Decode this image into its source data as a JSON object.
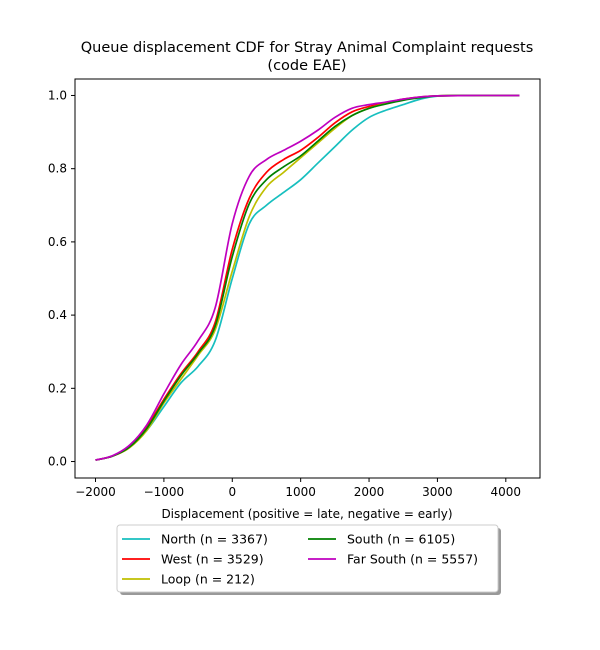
{
  "chart_data": {
    "type": "line",
    "title_line1": "Queue displacement CDF for Stray Animal Complaint  requests",
    "title_line2": "(code EAE)",
    "xlabel": "Displacement (positive = late, negative = early)",
    "ylabel": "",
    "xlim": [
      -2300,
      4500
    ],
    "ylim": [
      -0.045,
      1.045
    ],
    "xticks": [
      -2000,
      -1000,
      0,
      1000,
      2000,
      3000,
      4000
    ],
    "xtick_labels": [
      "−2000",
      "−1000",
      "0",
      "1000",
      "2000",
      "3000",
      "4000"
    ],
    "yticks": [
      0.0,
      0.2,
      0.4,
      0.6,
      0.8,
      1.0
    ],
    "ytick_labels": [
      "0.0",
      "0.2",
      "0.4",
      "0.6",
      "0.8",
      "1.0"
    ],
    "grid": false,
    "legend_position": "bottom-center, below axes",
    "x": [
      -2000,
      -1750,
      -1500,
      -1250,
      -1000,
      -750,
      -500,
      -250,
      0,
      250,
      500,
      750,
      1000,
      1250,
      1500,
      1750,
      2000,
      2250,
      2500,
      2750,
      3000,
      3500,
      4000,
      4200
    ],
    "series": [
      {
        "name": "North (n = 3367)",
        "color": "#17bfbf",
        "values": [
          0.004,
          0.015,
          0.04,
          0.085,
          0.15,
          0.215,
          0.26,
          0.33,
          0.5,
          0.65,
          0.7,
          0.735,
          0.77,
          0.815,
          0.86,
          0.905,
          0.94,
          0.96,
          0.975,
          0.99,
          0.998,
          1.0,
          1.0,
          1.0
        ]
      },
      {
        "name": "West (n = 3529)",
        "color": "#ff0000",
        "values": [
          0.004,
          0.015,
          0.04,
          0.095,
          0.17,
          0.24,
          0.3,
          0.38,
          0.58,
          0.72,
          0.79,
          0.825,
          0.85,
          0.885,
          0.925,
          0.955,
          0.97,
          0.98,
          0.99,
          0.996,
          0.999,
          1.0,
          1.0,
          1.0
        ]
      },
      {
        "name": "Loop (n = 212)",
        "color": "#bfbf00",
        "values": [
          0.004,
          0.015,
          0.038,
          0.085,
          0.16,
          0.225,
          0.29,
          0.36,
          0.52,
          0.67,
          0.75,
          0.79,
          0.83,
          0.87,
          0.91,
          0.945,
          0.965,
          0.978,
          0.988,
          0.995,
          0.999,
          1.0,
          1.0,
          1.0
        ]
      },
      {
        "name": "South (n = 6105)",
        "color": "#008000",
        "values": [
          0.004,
          0.015,
          0.04,
          0.09,
          0.165,
          0.235,
          0.295,
          0.37,
          0.56,
          0.705,
          0.77,
          0.805,
          0.835,
          0.875,
          0.915,
          0.945,
          0.965,
          0.977,
          0.987,
          0.994,
          0.999,
          1.0,
          1.0,
          1.0
        ]
      },
      {
        "name": "Far South (n = 5557)",
        "color": "#bf00bf",
        "values": [
          0.004,
          0.016,
          0.045,
          0.1,
          0.185,
          0.265,
          0.33,
          0.42,
          0.65,
          0.78,
          0.825,
          0.85,
          0.875,
          0.905,
          0.94,
          0.965,
          0.975,
          0.982,
          0.99,
          0.996,
          0.999,
          1.0,
          1.0,
          1.0
        ]
      }
    ]
  }
}
